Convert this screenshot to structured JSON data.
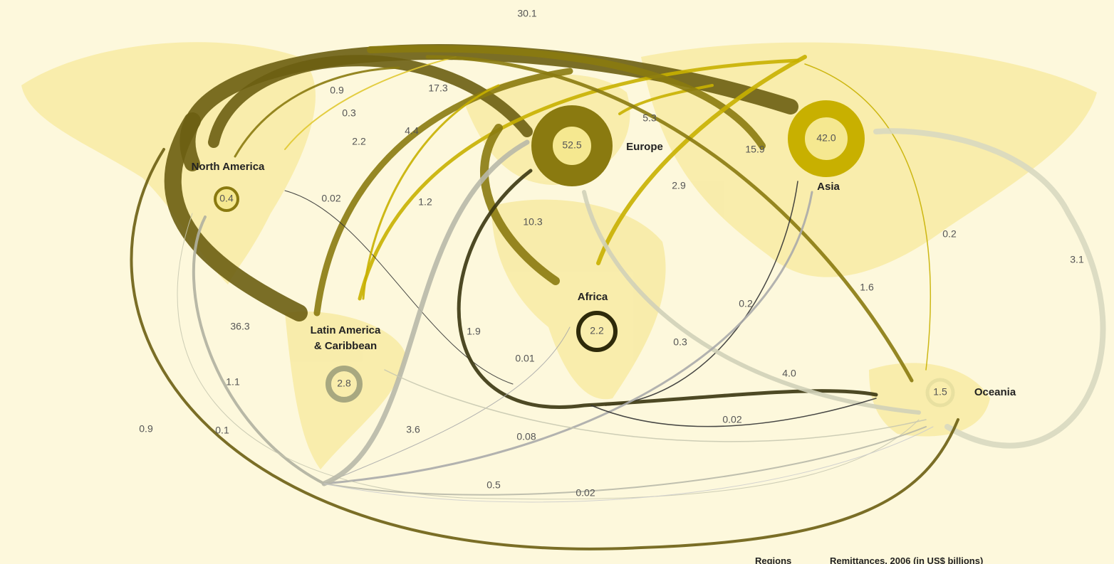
{
  "regions": [
    {
      "name_lines": [
        "North America"
      ],
      "intra": "0.4"
    },
    {
      "name_lines": [
        "Latin America",
        "& Caribbean"
      ],
      "intra": "2.8"
    },
    {
      "name_lines": [
        "Europe"
      ],
      "intra": "52.5"
    },
    {
      "name_lines": [
        "Africa"
      ],
      "intra": "2.2"
    },
    {
      "name_lines": [
        "Asia"
      ],
      "intra": "42.0"
    },
    {
      "name_lines": [
        "Oceania"
      ],
      "intra": "1.5"
    }
  ],
  "flows": [
    {
      "value": "30.1"
    },
    {
      "value": "17.3"
    },
    {
      "value": "0.9"
    },
    {
      "value": "0.3"
    },
    {
      "value": "2.2"
    },
    {
      "value": "4.4"
    },
    {
      "value": "5.3"
    },
    {
      "value": "15.9"
    },
    {
      "value": "2.9"
    },
    {
      "value": "0.02"
    },
    {
      "value": "1.2"
    },
    {
      "value": "10.3"
    },
    {
      "value": "0.2"
    },
    {
      "value": "3.1"
    },
    {
      "value": "1.6"
    },
    {
      "value": "0.2"
    },
    {
      "value": "36.3"
    },
    {
      "value": "1.9"
    },
    {
      "value": "0.3"
    },
    {
      "value": "0.01"
    },
    {
      "value": "1.1"
    },
    {
      "value": "4.0"
    },
    {
      "value": "0.9"
    },
    {
      "value": "0.1"
    },
    {
      "value": "3.6"
    },
    {
      "value": "0.08"
    },
    {
      "value": "0.02"
    },
    {
      "value": "0.5"
    },
    {
      "value": "0.02"
    }
  ],
  "legend": {
    "regions": "Regions",
    "remittances": "Remittances, 2006 (in US$ billions)"
  }
}
